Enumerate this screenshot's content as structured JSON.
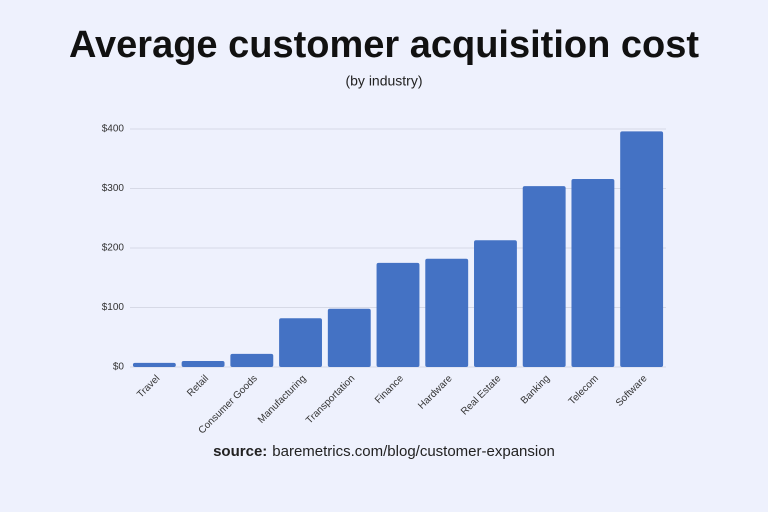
{
  "chart_data": {
    "type": "bar",
    "title": "Average customer acquisition cost",
    "subtitle": "(by industry)",
    "categories": [
      "Travel",
      "Retail",
      "Consumer Goods",
      "Manufacturing",
      "Transportation",
      "Finance",
      "Hardware",
      "Real Estate",
      "Banking",
      "Telecom",
      "Software"
    ],
    "values": [
      7,
      10,
      22,
      82,
      98,
      175,
      182,
      213,
      304,
      316,
      396
    ],
    "color": "#4472c4",
    "ylim": [
      0,
      400
    ],
    "yticks": [
      {
        "value": 0,
        "label": "$0"
      },
      {
        "value": 100,
        "label": "$100"
      },
      {
        "value": 200,
        "label": "$200"
      },
      {
        "value": 300,
        "label": "$300"
      },
      {
        "value": 400,
        "label": "$400"
      }
    ],
    "grid": true,
    "source_label": "source:",
    "source_text": "baremetrics.com/blog/customer-expansion"
  }
}
